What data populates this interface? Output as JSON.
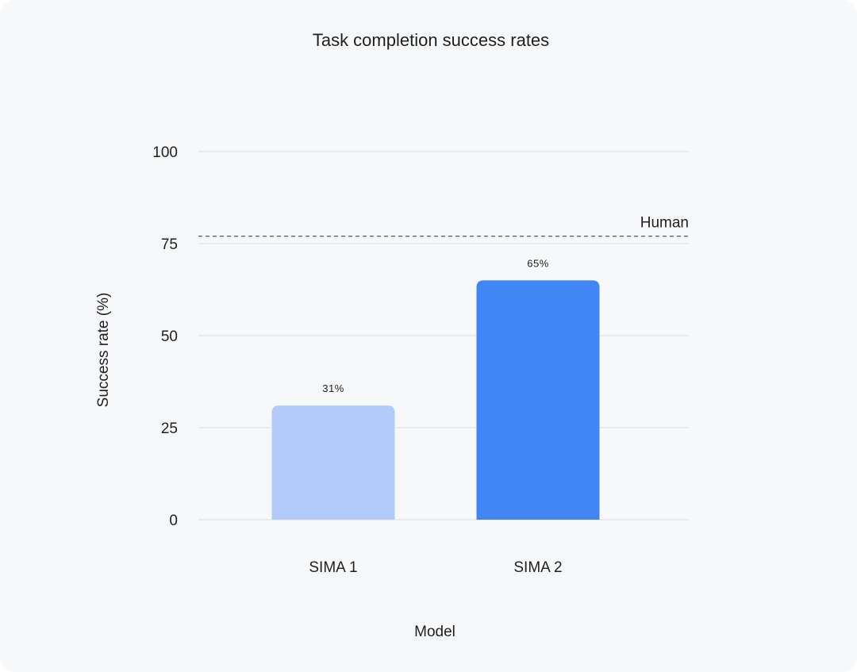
{
  "chart_data": {
    "type": "bar",
    "title": "Task completion success rates",
    "xlabel": "Model",
    "ylabel": "Success rate (%)",
    "ylim": [
      0,
      100
    ],
    "yticks": [
      0,
      25,
      50,
      75,
      100
    ],
    "categories": [
      "SIMA 1",
      "SIMA 2"
    ],
    "values": [
      31,
      65
    ],
    "data_labels": [
      "31%",
      "65%"
    ],
    "bar_colors": [
      "#b2cbfb",
      "#4286f5"
    ],
    "reference_line": {
      "label": "Human",
      "value": 77
    },
    "grid": true
  }
}
